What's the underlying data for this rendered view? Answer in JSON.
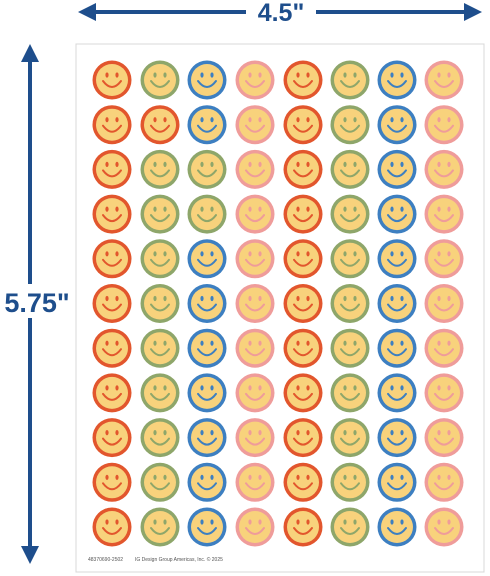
{
  "dimensions": {
    "width": "4.5\"",
    "height": "5.75\""
  },
  "footer": {
    "code": "48370690-2502",
    "copyright": "IG Design Group Americas, Inc. © 2025"
  }
}
